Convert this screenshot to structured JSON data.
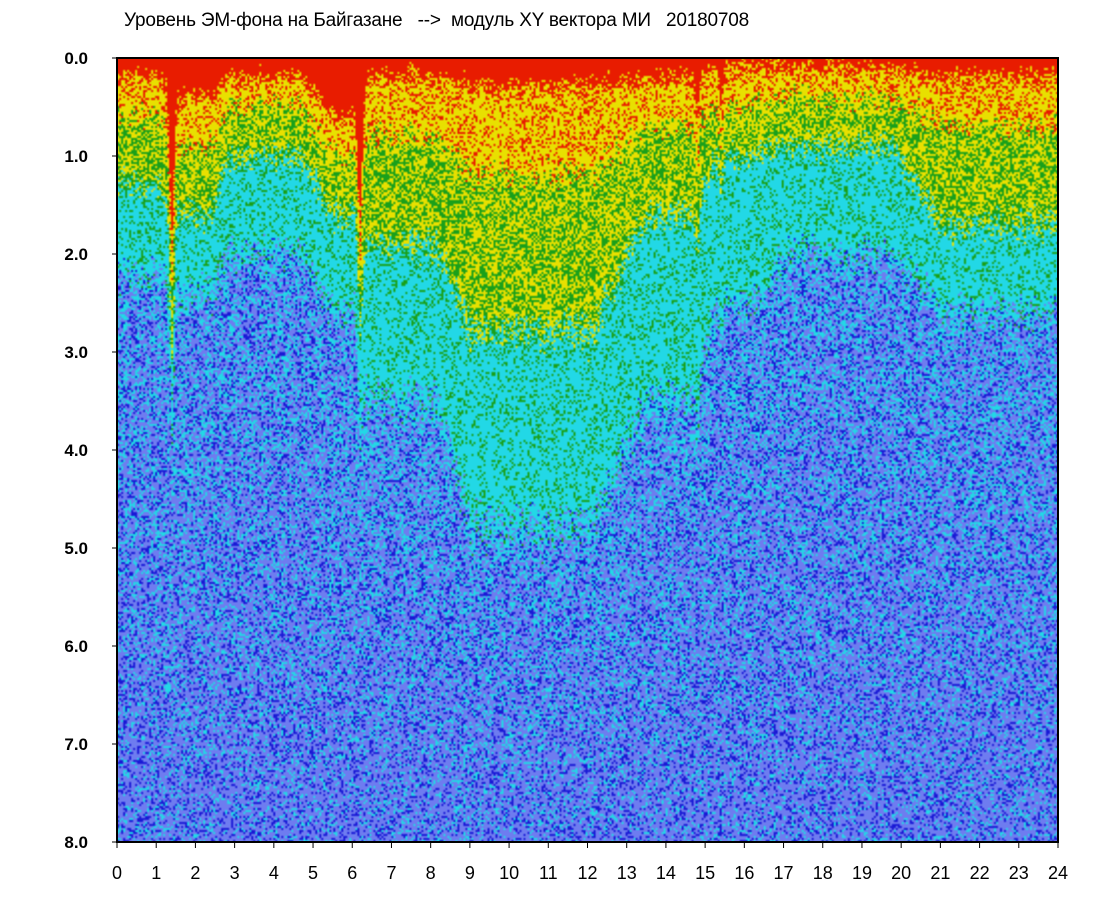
{
  "chart_data": {
    "type": "heatmap",
    "title": "Уровень ЭМ-фона на Байгазане   -->  модуль XY вектора МИ   20180708",
    "xlabel": "",
    "ylabel": "",
    "xlim": [
      0,
      24
    ],
    "ylim": [
      8.0,
      0.0
    ],
    "y_axis_inverted": true,
    "x_ticks": [
      "0",
      "1",
      "2",
      "3",
      "4",
      "5",
      "6",
      "7",
      "8",
      "9",
      "10",
      "11",
      "12",
      "13",
      "14",
      "15",
      "16",
      "17",
      "18",
      "19",
      "20",
      "21",
      "22",
      "23",
      "24"
    ],
    "y_ticks": [
      "0.0",
      "1.0",
      "2.0",
      "3.0",
      "4.0",
      "5.0",
      "6.0",
      "7.0",
      "8.0"
    ],
    "grid": false,
    "legend": "none",
    "colormap": [
      "#1a1ad6",
      "#6e7cf0",
      "#22d8e6",
      "#1aa01a",
      "#e8e000",
      "#e81c00"
    ],
    "value_bands": [
      {
        "x": 0.0,
        "x2": 1.5,
        "red_top": 0.2,
        "yellow_to": 0.6,
        "green_to": 1.3,
        "cyan_to": 2.2
      },
      {
        "x": 1.5,
        "x2": 2.8,
        "red_top": 0.4,
        "yellow_to": 0.9,
        "green_to": 1.6,
        "cyan_to": 2.4
      },
      {
        "x": 2.8,
        "x2": 5.5,
        "red_top": 0.2,
        "yellow_to": 0.5,
        "green_to": 1.0,
        "cyan_to": 2.0
      },
      {
        "x": 5.5,
        "x2": 6.4,
        "red_top": 0.6,
        "yellow_to": 1.0,
        "green_to": 1.6,
        "cyan_to": 2.6
      },
      {
        "x": 6.4,
        "x2": 9.0,
        "red_top": 0.2,
        "yellow_to": 0.8,
        "green_to": 1.9,
        "cyan_to": 3.5
      },
      {
        "x": 9.0,
        "x2": 13.5,
        "red_top": 0.3,
        "yellow_to": 1.2,
        "green_to": 2.8,
        "cyan_to": 4.8
      },
      {
        "x": 13.5,
        "x2": 15.3,
        "red_top": 0.2,
        "yellow_to": 0.7,
        "green_to": 1.6,
        "cyan_to": 3.5
      },
      {
        "x": 15.3,
        "x2": 17.0,
        "red_top": 0.1,
        "yellow_to": 0.5,
        "green_to": 1.0,
        "cyan_to": 2.5
      },
      {
        "x": 17.0,
        "x2": 21.0,
        "red_top": 0.1,
        "yellow_to": 0.4,
        "green_to": 0.9,
        "cyan_to": 2.0
      },
      {
        "x": 21.0,
        "x2": 24.0,
        "red_top": 0.2,
        "yellow_to": 0.7,
        "green_to": 1.7,
        "cyan_to": 2.6
      }
    ],
    "spikes": [
      {
        "x": 1.4,
        "depth": 1.6
      },
      {
        "x": 6.2,
        "depth": 1.2
      },
      {
        "x": 14.8,
        "depth": 0.4
      },
      {
        "x": 15.4,
        "depth": 0.4
      }
    ]
  }
}
